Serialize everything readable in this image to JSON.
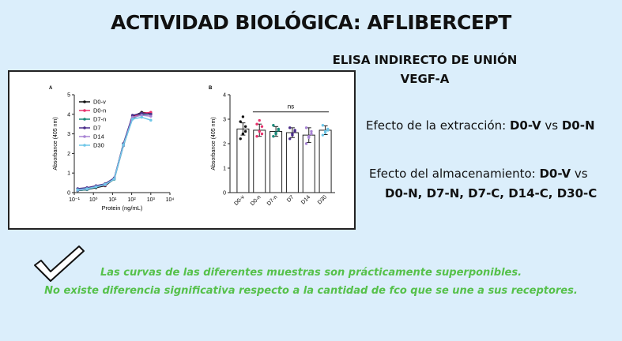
{
  "page": {
    "title": "ACTIVIDAD BIOLÓGICA: AFLIBERCEPT",
    "subtitle_line1": "ELISA INDIRECTO DE UNIÓN",
    "subtitle_line2": "VEGF-A",
    "point1_prefix": "Efecto de la extracción: ",
    "point1_bold1": "D0-V",
    "point1_mid": " vs ",
    "point1_bold2": "D0-N",
    "point2_prefix": "Efecto del almacenamiento: ",
    "point2_bold": "D0-V",
    "point2_suffix": " vs",
    "point2_line2": "D0-N, D7-N, D7-C, D14-C, D30-C",
    "conclusion1": "Las curvas de las diferentes muestras son prácticamente superponibles.",
    "conclusion2": "No existe diferencia significativa respecto a la cantidad de fco que se une a sus receptores.",
    "check_icon": "checkmark-icon",
    "accent_color": "#56c14b"
  },
  "chart_data": [
    {
      "type": "line",
      "panel_label": "A",
      "xlabel": "Protein (ng/mL)",
      "ylabel": "Absorbance (405 nm)",
      "xscale": "log",
      "xlim": [
        0.1,
        10000
      ],
      "ylim": [
        0,
        5
      ],
      "xticks": [
        "10⁻¹",
        "10⁰",
        "10¹",
        "10²",
        "10³",
        "10⁴"
      ],
      "yticks": [
        "0",
        "1",
        "2",
        "3",
        "4",
        "5"
      ],
      "grid": false,
      "legend": "top-left",
      "x": [
        0.15,
        0.46,
        1.37,
        4.1,
        12.3,
        37,
        111,
        333,
        1000
      ],
      "series": [
        {
          "name": "D0-v",
          "color": "#111111",
          "values": [
            0.1,
            0.15,
            0.25,
            0.35,
            0.7,
            2.5,
            3.9,
            4.1,
            4.05
          ]
        },
        {
          "name": "D0-n",
          "color": "#e8336d",
          "values": [
            0.15,
            0.2,
            0.3,
            0.38,
            0.72,
            2.45,
            3.85,
            4.05,
            4.1
          ]
        },
        {
          "name": "D7-n",
          "color": "#1a8a7a",
          "values": [
            0.1,
            0.15,
            0.28,
            0.4,
            0.68,
            2.4,
            3.8,
            4.0,
            4.0
          ]
        },
        {
          "name": "D7",
          "color": "#4b2d8a",
          "values": [
            0.2,
            0.25,
            0.35,
            0.45,
            0.75,
            2.5,
            3.95,
            4.05,
            4.0
          ]
        },
        {
          "name": "D14",
          "color": "#a884d4",
          "values": [
            0.12,
            0.18,
            0.3,
            0.4,
            0.7,
            2.42,
            3.85,
            3.95,
            3.9
          ]
        },
        {
          "name": "D30",
          "color": "#6fc7e8",
          "values": [
            0.15,
            0.2,
            0.3,
            0.42,
            0.7,
            2.45,
            3.75,
            3.85,
            3.7
          ]
        }
      ]
    },
    {
      "type": "bar",
      "panel_label": "B",
      "xlabel": "",
      "ylabel": "Absorbance (405 nm)",
      "ylim": [
        0,
        4
      ],
      "yticks": [
        "0",
        "1",
        "2",
        "3",
        "4"
      ],
      "grid": false,
      "annotation": "ns",
      "categories": [
        "D0-v",
        "D0-n",
        "D7-n",
        "D7",
        "D14",
        "D30"
      ],
      "values": [
        2.6,
        2.55,
        2.5,
        2.45,
        2.35,
        2.55
      ],
      "errors": [
        0.25,
        0.25,
        0.2,
        0.2,
        0.3,
        0.18
      ],
      "colors": [
        "#111111",
        "#e8336d",
        "#1a8a7a",
        "#4b2d8a",
        "#a884d4",
        "#6fc7e8"
      ],
      "points": [
        [
          2.2,
          2.4,
          2.7,
          2.9,
          3.1,
          2.5
        ],
        [
          2.3,
          2.5,
          2.7,
          2.8,
          2.95,
          2.4
        ],
        [
          2.3,
          2.45,
          2.6,
          2.75,
          2.4,
          2.55
        ],
        [
          2.2,
          2.35,
          2.55,
          2.65,
          2.4,
          2.5
        ],
        [
          2.0,
          2.25,
          2.5,
          2.65,
          2.3,
          2.4
        ],
        [
          2.35,
          2.5,
          2.6,
          2.75,
          2.45,
          2.55
        ]
      ]
    }
  ]
}
